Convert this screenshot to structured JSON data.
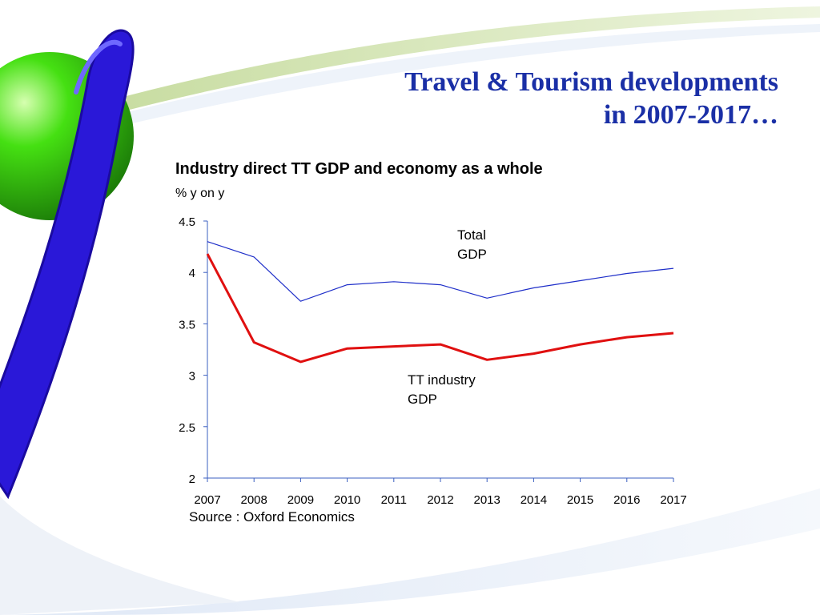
{
  "slide": {
    "title_line1": "Travel & Tourism developments",
    "title_line2": "in 2007-2017…",
    "source": "Source : Oxford Economics"
  },
  "colors": {
    "title": "#1a2fa6",
    "total_gdp_line": "#1f2fc9",
    "tt_industry_line": "#e01010",
    "axis": "#3b5fc0"
  },
  "chart_data": {
    "type": "line",
    "title": "Industry direct TT GDP and economy as a whole",
    "subtitle": "% y on y",
    "xlabel": "",
    "ylabel": "",
    "x": [
      "2007",
      "2008",
      "2009",
      "2010",
      "2011",
      "2012",
      "2013",
      "2014",
      "2015",
      "2016",
      "2017"
    ],
    "ylim": [
      2,
      4.5
    ],
    "yticks": [
      "2",
      "2.5",
      "3",
      "3.5",
      "4",
      "4.5"
    ],
    "grid": false,
    "series": [
      {
        "label_lines": [
          "Total",
          "GDP"
        ],
        "values": [
          4.3,
          4.15,
          3.72,
          3.88,
          3.91,
          3.88,
          3.75,
          3.85,
          3.92,
          3.99,
          4.04
        ]
      },
      {
        "label_lines": [
          "TT industry",
          "GDP"
        ],
        "values": [
          4.18,
          3.32,
          3.13,
          3.26,
          3.28,
          3.3,
          3.15,
          3.21,
          3.3,
          3.37,
          3.41
        ]
      }
    ]
  }
}
